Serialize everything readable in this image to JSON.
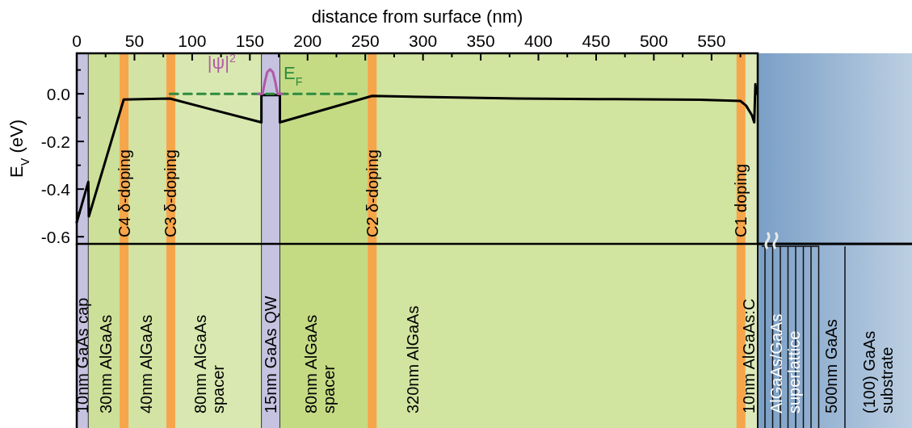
{
  "chart_data": {
    "type": "line",
    "xlabel": "distance from surface (nm)",
    "ylabel": "E$_{V}$ (eV)",
    "xlim": [
      0,
      590
    ],
    "xticks": [
      0,
      {
        "value": 25,
        "label": null
      },
      50,
      {
        "value": 75,
        "label": null
      },
      100,
      {
        "value": 125,
        "label": null
      },
      150,
      {
        "value": 175,
        "label": null
      },
      200,
      {
        "value": 225,
        "label": null
      },
      250,
      {
        "value": 275,
        "label": null
      },
      300,
      {
        "value": 325,
        "label": null
      },
      350,
      {
        "value": 375,
        "label": null
      },
      400,
      {
        "value": 425,
        "label": null
      },
      450,
      {
        "value": 475,
        "label": null
      },
      500,
      {
        "value": 525,
        "label": null
      },
      550,
      {
        "value": 575,
        "label": null
      }
    ],
    "ylim": [
      -0.63,
      0.17
    ],
    "yticks": [
      {
        "value": 0.1,
        "label": null
      },
      {
        "value": 0,
        "label": "0.0"
      },
      {
        "value": -0.1,
        "label": null
      },
      -0.2,
      {
        "value": -0.3,
        "label": null
      },
      -0.4,
      {
        "value": -0.5,
        "label": null
      },
      -0.6
    ],
    "series": [
      {
        "color": "#000000",
        "x": [
          0,
          10,
          10.5,
          40.7,
          80.7,
          160,
          160,
          176,
          176,
          256,
          381,
          450,
          540,
          575,
          580,
          585,
          587,
          588,
          589
        ],
        "values": [
          -0.54,
          -0.37,
          -0.515,
          -0.024,
          -0.02,
          -0.12,
          -0.005,
          -0.005,
          -0.12,
          -0.009,
          -0.02,
          -0.022,
          -0.025,
          -0.03,
          -0.05,
          -0.09,
          -0.12,
          0.04,
          0.0
        ]
      },
      {
        "name": "E$_{F}$",
        "color": "#2e8b3e",
        "line_style": "dashed",
        "x": [
          80.7,
          245
        ],
        "values": [
          0,
          0
        ]
      },
      {
        "name": "|ψ|$^{2}$",
        "color": "#b05aa8",
        "x": [
          157,
          161,
          163,
          165,
          167.5,
          170,
          172,
          174,
          178
        ],
        "values": [
          0,
          0,
          0.05,
          0.09,
          0.103,
          0.09,
          0.05,
          0,
          0
        ]
      }
    ],
    "bands": [
      {
        "axis": "x",
        "from": 0,
        "to": 10,
        "label": "10nm GaAs cap",
        "color": "#c5c3e0"
      },
      {
        "axis": "x",
        "from": 10,
        "to": 40,
        "label": "30nm AlGaAs",
        "color": "#cde099"
      },
      {
        "axis": "x",
        "from": 40,
        "to": 80,
        "label": "40nm AlGaAs",
        "color": "#d3e3a3"
      },
      {
        "axis": "x",
        "from": 80,
        "to": 160,
        "label": "80nm AlGaAs\nspacer",
        "color": "#d9e8b0"
      },
      {
        "axis": "x",
        "from": 160,
        "to": 176,
        "label": "15nm GaAs QW",
        "color": "#c5c3e0"
      },
      {
        "axis": "x",
        "from": 176,
        "to": 256,
        "label": "80nm AlGaAs\nspacer",
        "color": "#c4db84"
      },
      {
        "axis": "x",
        "from": 256,
        "to": 575,
        "label": "320nm AlGaAs",
        "color": "#d1e4a0"
      },
      {
        "axis": "x",
        "from": 575,
        "to": 590,
        "label": "10nm AlGaAs:C",
        "color": "#dde9b8"
      }
    ],
    "ref_lines": [
      {
        "axis": "x",
        "value": 41,
        "label": "C4 δ-doping",
        "color": "#f7a54a"
      },
      {
        "axis": "x",
        "value": 81.5,
        "label": "C3 δ-doping",
        "color": "#f7a54a"
      },
      {
        "axis": "x",
        "value": 256,
        "label": "C2 δ-doping",
        "color": "#f7a54a"
      },
      {
        "axis": "x",
        "value": 575.5,
        "label": "C1 doping",
        "color": "#f7a54a"
      }
    ],
    "annotations": [
      "AlGaAs/GaAs\nsuperlattice",
      "500nm GaAs",
      "(100) GaAs\nsubstrate"
    ]
  }
}
